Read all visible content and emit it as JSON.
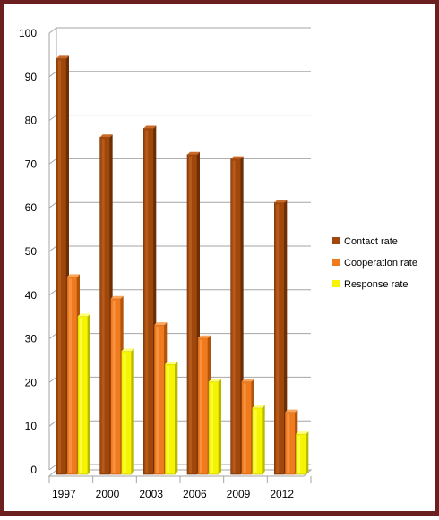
{
  "chart_data": {
    "type": "bar",
    "categories": [
      "1997",
      "2000",
      "2003",
      "2006",
      "2009",
      "2012"
    ],
    "series": [
      {
        "name": "Contact rate",
        "values": [
          95,
          77,
          79,
          73,
          72,
          62
        ]
      },
      {
        "name": "Cooperation rate",
        "values": [
          45,
          40,
          34,
          31,
          21,
          14
        ]
      },
      {
        "name": "Response rate",
        "values": [
          36,
          28,
          25,
          21,
          15,
          9
        ]
      }
    ],
    "yticks": [
      "0",
      "10",
      "20",
      "30",
      "40",
      "50",
      "60",
      "70",
      "80",
      "90",
      "100"
    ],
    "ylim": [
      0,
      100
    ],
    "grid": true,
    "legend_position": "right",
    "title": "",
    "xlabel": "",
    "ylabel": ""
  },
  "colors": {
    "frame": "#6b1f1f",
    "grid": "#a6a6a6",
    "series": [
      {
        "base": "#a0470b",
        "dark": "#6e2e05",
        "light": "#c96a2a"
      },
      {
        "base": "#f07b1e",
        "dark": "#b3540b",
        "light": "#fba65c"
      },
      {
        "base": "#f5f500",
        "dark": "#b8b800",
        "light": "#ffff7a"
      }
    ]
  }
}
